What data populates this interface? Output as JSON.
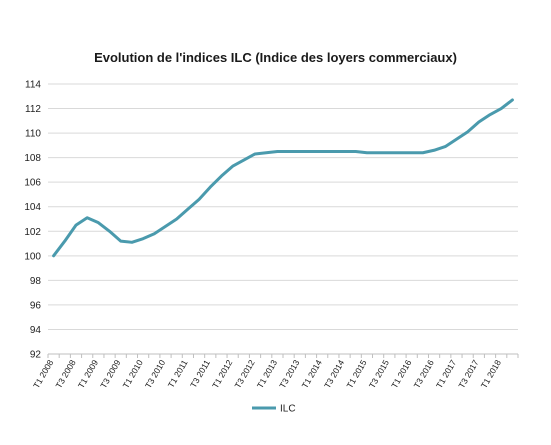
{
  "chart_data": {
    "type": "line",
    "title": "Evolution de l'indices ILC (Indice des loyers commerciaux)",
    "xlabel": "",
    "ylabel": "",
    "ylim": [
      92,
      114
    ],
    "yticks": [
      92,
      94,
      96,
      98,
      100,
      102,
      104,
      106,
      108,
      110,
      112,
      114
    ],
    "grid": true,
    "legend": "bottom",
    "line_color": "#4a9aad",
    "categories": [
      "T1 2008",
      "T2 2008",
      "T3 2008",
      "T4 2008",
      "T1 2009",
      "T2 2009",
      "T3 2009",
      "T4 2009",
      "T1 2010",
      "T2 2010",
      "T3 2010",
      "T4 2010",
      "T1 2011",
      "T2 2011",
      "T3 2011",
      "T4 2011",
      "T1 2012",
      "T2 2012",
      "T3 2012",
      "T4 2012",
      "T1 2013",
      "T2 2013",
      "T3 2013",
      "T4 2013",
      "T1 2014",
      "T2 2014",
      "T3 2014",
      "T4 2014",
      "T1 2015",
      "T2 2015",
      "T3 2015",
      "T4 2015",
      "T1 2016",
      "T2 2016",
      "T3 2016",
      "T4 2016",
      "T1 2017",
      "T2 2017",
      "T3 2017",
      "T4 2017",
      "T1 2018",
      "T2 2018"
    ],
    "tick_labels": [
      "T1 2008",
      "T3 2008",
      "T1 2009",
      "T3 2009",
      "T1 2010",
      "T3 2010",
      "T1 2011",
      "T3 2011",
      "T1 2012",
      "T3 2012",
      "T1 2013",
      "T3 2013",
      "T1 2014",
      "T3 2014",
      "T1 2015",
      "T3 2015",
      "T1 2016",
      "T3 2016",
      "T1 2017",
      "T3 2017",
      "T1 2018"
    ],
    "series": [
      {
        "name": "ILC",
        "values": [
          100.0,
          101.2,
          102.5,
          103.1,
          102.7,
          102.0,
          101.2,
          101.1,
          101.4,
          101.8,
          102.4,
          103.0,
          103.8,
          104.6,
          105.6,
          106.5,
          107.3,
          107.8,
          108.3,
          108.4,
          108.5,
          108.5,
          108.5,
          108.5,
          108.5,
          108.5,
          108.5,
          108.5,
          108.4,
          108.4,
          108.4,
          108.4,
          108.4,
          108.4,
          108.6,
          108.9,
          109.5,
          110.1,
          110.9,
          111.5,
          112.0,
          112.7
        ]
      }
    ]
  }
}
